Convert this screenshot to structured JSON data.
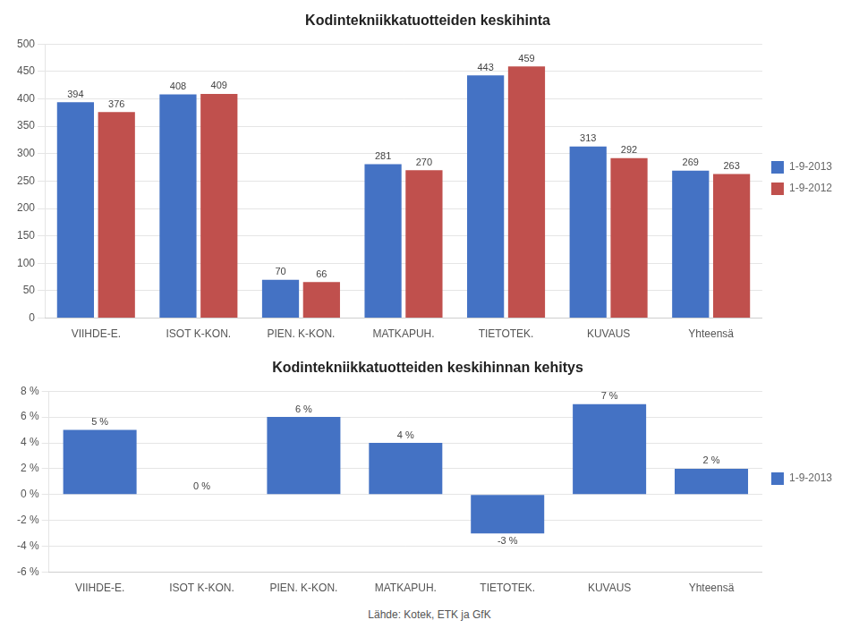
{
  "chart_data": [
    {
      "type": "bar",
      "title": "Kodintekniikkatuotteiden keskihinta",
      "categories": [
        "VIIHDE-E.",
        "ISOT K-KON.",
        "PIEN. K-KON.",
        "MATKAPUH.",
        "TIETOTEK.",
        "KUVAUS",
        "Yhteensä"
      ],
      "series": [
        {
          "name": "1-9-2013",
          "color": "#4472C4",
          "values": [
            394,
            408,
            70,
            281,
            443,
            313,
            269
          ]
        },
        {
          "name": "1-9-2012",
          "color": "#C0504D",
          "values": [
            376,
            409,
            66,
            270,
            459,
            292,
            263
          ]
        }
      ],
      "ylim": [
        0,
        500
      ],
      "yticks": [
        0,
        50,
        100,
        150,
        200,
        250,
        300,
        350,
        400,
        450,
        500
      ],
      "grid": true,
      "legend": "right",
      "data_labels": true
    },
    {
      "type": "bar",
      "title": "Kodintekniikkatuotteiden keskihinnan kehitys",
      "categories": [
        "VIIHDE-E.",
        "ISOT K-KON.",
        "PIEN. K-KON.",
        "MATKAPUH.",
        "TIETOTEK.",
        "KUVAUS",
        "Yhteensä"
      ],
      "series": [
        {
          "name": "1-9-2013",
          "color": "#4472C4",
          "values": [
            5,
            0,
            6,
            4,
            -3,
            7,
            2
          ],
          "value_labels": [
            "5 %",
            "0 %",
            "6 %",
            "4 %",
            "-3 %",
            "7 %",
            "2 %"
          ]
        }
      ],
      "ylim": [
        -6,
        8
      ],
      "yticks": [
        {
          "value": -6,
          "label": "-6 %"
        },
        {
          "value": -4,
          "label": "-4 %"
        },
        {
          "value": -2,
          "label": "-2 %"
        },
        {
          "value": 0,
          "label": "0 %"
        },
        {
          "value": 2,
          "label": "2 %"
        },
        {
          "value": 4,
          "label": "4 %"
        },
        {
          "value": 6,
          "label": "6 %"
        },
        {
          "value": 8,
          "label": "8 %"
        }
      ],
      "grid": true,
      "legend": "right",
      "data_labels": true,
      "annotations": [
        "Lähde: Kotek, ETK ja GfK"
      ]
    }
  ]
}
